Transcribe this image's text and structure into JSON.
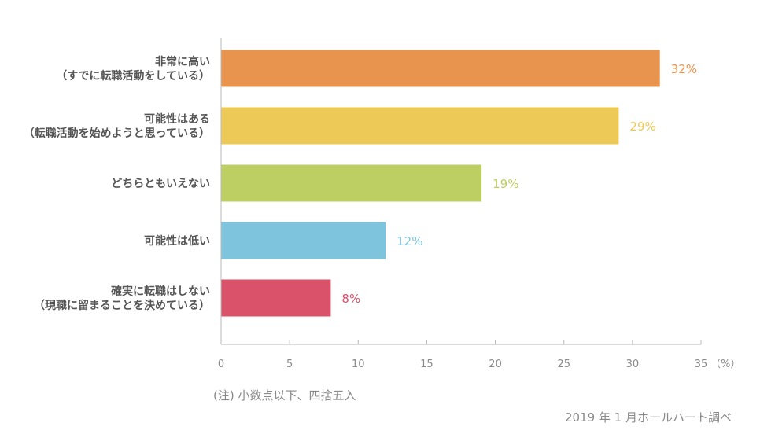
{
  "chart_data": {
    "type": "bar",
    "orientation": "horizontal",
    "categories": [
      [
        "非常に高い",
        "（すでに転職活動をしている）"
      ],
      [
        "可能性はある",
        "（転職活動を始めようと思っている）"
      ],
      [
        "どちらともいえない"
      ],
      [
        "可能性は低い"
      ],
      [
        "確実に転職はしない",
        "（現職に留まることを決めている）"
      ]
    ],
    "values": [
      32,
      29,
      19,
      12,
      8
    ],
    "value_labels": [
      "32%",
      "29%",
      "19%",
      "12%",
      "8%"
    ],
    "colors": [
      "#E8944E",
      "#EDCA57",
      "#BDCE63",
      "#7FC4DD",
      "#DA526A"
    ],
    "xlim": [
      0,
      35
    ],
    "xticks": [
      0,
      5,
      10,
      15,
      20,
      25,
      30,
      35
    ],
    "xunit": "（%）",
    "grid": false
  },
  "footer": {
    "note": "(注) 小数点以下、四捨五入",
    "source": "2019 年 1 月ホールハート調べ"
  }
}
